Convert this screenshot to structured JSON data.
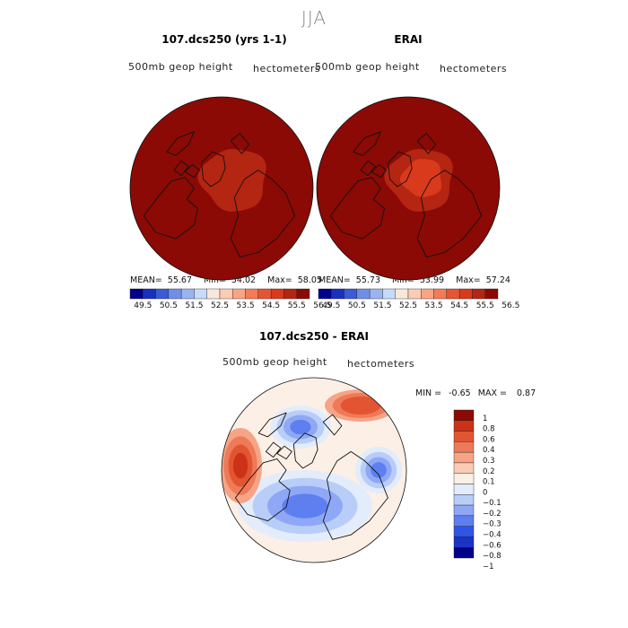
{
  "season": "JJA",
  "palettes": {
    "height": [
      "#00008b",
      "#1a2fbe",
      "#3a5ad8",
      "#6f8fe6",
      "#9ab4f0",
      "#c8dafa",
      "#f8e8da",
      "#fccbb3",
      "#f9a584",
      "#f47b57",
      "#e65532",
      "#d93a1c",
      "#b42512",
      "#8b0a05"
    ],
    "diff": [
      "#00008b",
      "#1a33c4",
      "#2f55e6",
      "#5d7ff0",
      "#8fa8f5",
      "#b8cdf8",
      "#e3ecfb",
      "#fbefe6",
      "#fbcab5",
      "#f6a486",
      "#ee7a58",
      "#e35532",
      "#cb3218",
      "#8b0a05"
    ]
  },
  "chart_data": [
    {
      "type": "heatmap",
      "panel": "model",
      "title": "107.dcs250 (yrs 1-1)",
      "field_label": "500mb geop height",
      "units": "hectometers",
      "stats": {
        "mean_label": "MEAN=",
        "mean": "55.67",
        "min_label": "Min=",
        "min": "54.02",
        "max_label": "Max=",
        "max": "58.05"
      },
      "colorbar_levels": [
        "49.5",
        "50.5",
        "51.5",
        "52.5",
        "53.5",
        "54.5",
        "55.5",
        "56.5"
      ],
      "projection": "north polar stereographic",
      "contour_rings": [
        55.2,
        55.6,
        56.0,
        56.4,
        56.8,
        57.2
      ]
    },
    {
      "type": "heatmap",
      "panel": "obs",
      "title": "ERAI",
      "field_label": "500mb geop height",
      "units": "hectometers",
      "stats": {
        "mean_label": "MEAN=",
        "mean": "55.73",
        "min_label": "Min=",
        "min": "53.99",
        "max_label": "Max=",
        "max": "57.24"
      },
      "colorbar_levels": [
        "49.5",
        "50.5",
        "51.5",
        "52.5",
        "53.5",
        "54.5",
        "55.5",
        "56.5"
      ],
      "projection": "north polar stereographic",
      "contour_rings": [
        55.2,
        55.6,
        56.0,
        56.4,
        56.8,
        57.2
      ]
    },
    {
      "type": "heatmap",
      "panel": "difference",
      "title": "107.dcs250 - ERAI",
      "field_label": "500mb geop height",
      "units": "hectometers",
      "stats": {
        "min_label": "MIN =",
        "min": "-0.65",
        "max_label": "MAX =",
        "max": "0.87"
      },
      "colorbar_levels": [
        "1",
        "0.8",
        "0.6",
        "0.4",
        "0.3",
        "0.2",
        "0.1",
        "0",
        "−0.1",
        "−0.2",
        "−0.3",
        "−0.4",
        "−0.6",
        "−0.8",
        "−1"
      ],
      "projection": "north polar stereographic",
      "blobs": [
        {
          "sign": "neg",
          "value": -0.5
        },
        {
          "sign": "neg",
          "value": -0.55
        },
        {
          "sign": "neg",
          "value": -0.4
        },
        {
          "sign": "pos",
          "value": 0.6
        },
        {
          "sign": "pos",
          "value": 0.4
        }
      ]
    }
  ]
}
